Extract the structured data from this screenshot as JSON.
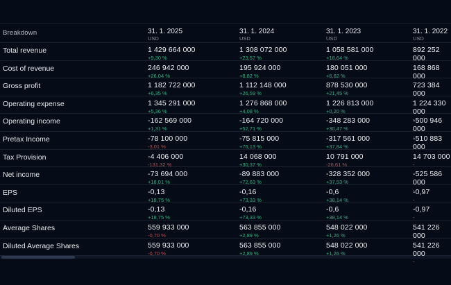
{
  "table": {
    "header": {
      "breakdown_label": "Breakdown",
      "columns": [
        {
          "date": "31. 1. 2025",
          "currency": "USD"
        },
        {
          "date": "31. 1. 2024",
          "currency": "USD"
        },
        {
          "date": "31. 1. 2023",
          "currency": "USD"
        },
        {
          "date": "31. 1. 2022",
          "currency": "USD"
        }
      ]
    },
    "rows": [
      {
        "label": "Total revenue",
        "cells": [
          {
            "value": "1 429 664 000",
            "change": "+9,30 %",
            "trend": "up"
          },
          {
            "value": "1 308 072 000",
            "change": "+23,57 %",
            "trend": "up"
          },
          {
            "value": "1 058 581 000",
            "change": "+18,64 %",
            "trend": "up"
          },
          {
            "value": "892 252 000",
            "change": "-",
            "trend": "none"
          }
        ]
      },
      {
        "label": "Cost of revenue",
        "cells": [
          {
            "value": "246 942 000",
            "change": "+26,04 %",
            "trend": "up"
          },
          {
            "value": "195 924 000",
            "change": "+8,82 %",
            "trend": "up"
          },
          {
            "value": "180 051 000",
            "change": "+6,62 %",
            "trend": "up"
          },
          {
            "value": "168 868 000",
            "change": "-",
            "trend": "none"
          }
        ]
      },
      {
        "label": "Gross profit",
        "cells": [
          {
            "value": "1 182 722 000",
            "change": "+6,35 %",
            "trend": "up"
          },
          {
            "value": "1 112 148 000",
            "change": "+26,59 %",
            "trend": "up"
          },
          {
            "value": "878 530 000",
            "change": "+21,45 %",
            "trend": "up"
          },
          {
            "value": "723 384 000",
            "change": "-",
            "trend": "none"
          }
        ]
      },
      {
        "label": "Operating expense",
        "cells": [
          {
            "value": "1 345 291 000",
            "change": "+5,36 %",
            "trend": "up"
          },
          {
            "value": "1 276 868 000",
            "change": "+4,08 %",
            "trend": "up"
          },
          {
            "value": "1 226 813 000",
            "change": "+0,20 %",
            "trend": "up"
          },
          {
            "value": "1 224 330 000",
            "change": "-",
            "trend": "none"
          }
        ]
      },
      {
        "label": "Operating income",
        "cells": [
          {
            "value": "-162 569 000",
            "change": "+1,31 %",
            "trend": "up"
          },
          {
            "value": "-164 720 000",
            "change": "+52,71 %",
            "trend": "up"
          },
          {
            "value": "-348 283 000",
            "change": "+30,47 %",
            "trend": "up"
          },
          {
            "value": "-500 946 000",
            "change": "-",
            "trend": "none"
          }
        ]
      },
      {
        "label": "Pretax Income",
        "cells": [
          {
            "value": "-78 100 000",
            "change": "-3,01 %",
            "trend": "down"
          },
          {
            "value": "-75 815 000",
            "change": "+76,13 %",
            "trend": "up"
          },
          {
            "value": "-317 561 000",
            "change": "+37,84 %",
            "trend": "up"
          },
          {
            "value": "-510 883 000",
            "change": "-",
            "trend": "none"
          }
        ]
      },
      {
        "label": "Tax Provision",
        "cells": [
          {
            "value": "-4 406 000",
            "change": "-131,32 %",
            "trend": "down"
          },
          {
            "value": "14 068 000",
            "change": "+30,37 %",
            "trend": "up"
          },
          {
            "value": "10 791 000",
            "change": "-26,61 %",
            "trend": "down"
          },
          {
            "value": "14 703 000",
            "change": "-",
            "trend": "none"
          }
        ]
      },
      {
        "label": "Net income",
        "cells": [
          {
            "value": "-73 694 000",
            "change": "+18,01 %",
            "trend": "up"
          },
          {
            "value": "-89 883 000",
            "change": "+72,63 %",
            "trend": "up"
          },
          {
            "value": "-328 352 000",
            "change": "+37,53 %",
            "trend": "up"
          },
          {
            "value": "-525 586 000",
            "change": "-",
            "trend": "none"
          }
        ]
      },
      {
        "label": "EPS",
        "cells": [
          {
            "value": "-0,13",
            "change": "+18,75 %",
            "trend": "up"
          },
          {
            "value": "-0,16",
            "change": "+73,33 %",
            "trend": "up"
          },
          {
            "value": "-0,6",
            "change": "+38,14 %",
            "trend": "up"
          },
          {
            "value": "-0,97",
            "change": "-",
            "trend": "none"
          }
        ]
      },
      {
        "label": "Diluted EPS",
        "cells": [
          {
            "value": "-0,13",
            "change": "+18,75 %",
            "trend": "up"
          },
          {
            "value": "-0,16",
            "change": "+73,33 %",
            "trend": "up"
          },
          {
            "value": "-0,6",
            "change": "+38,14 %",
            "trend": "up"
          },
          {
            "value": "-0,97",
            "change": "-",
            "trend": "none"
          }
        ]
      },
      {
        "label": "Average Shares",
        "cells": [
          {
            "value": "559 933 000",
            "change": "-0,70 %",
            "trend": "down"
          },
          {
            "value": "563 855 000",
            "change": "+2,89 %",
            "trend": "up"
          },
          {
            "value": "548 022 000",
            "change": "+1,26 %",
            "trend": "up"
          },
          {
            "value": "541 226 000",
            "change": "-",
            "trend": "none"
          }
        ]
      },
      {
        "label": "Diluted Average Shares",
        "cells": [
          {
            "value": "559 933 000",
            "change": "-0,70 %",
            "trend": "down"
          },
          {
            "value": "563 855 000",
            "change": "+2,89 %",
            "trend": "up"
          },
          {
            "value": "548 022 000",
            "change": "+1,26 %",
            "trend": "up"
          },
          {
            "value": "541 226 000",
            "change": "-",
            "trend": "none"
          }
        ]
      }
    ]
  },
  "colors": {
    "background": "#050b17",
    "positive_change": "#3cae82",
    "negative_change": "#b05559",
    "neutral_change": "#899099",
    "row_separator": "#1a2230",
    "value_text": "#eef0f3"
  }
}
